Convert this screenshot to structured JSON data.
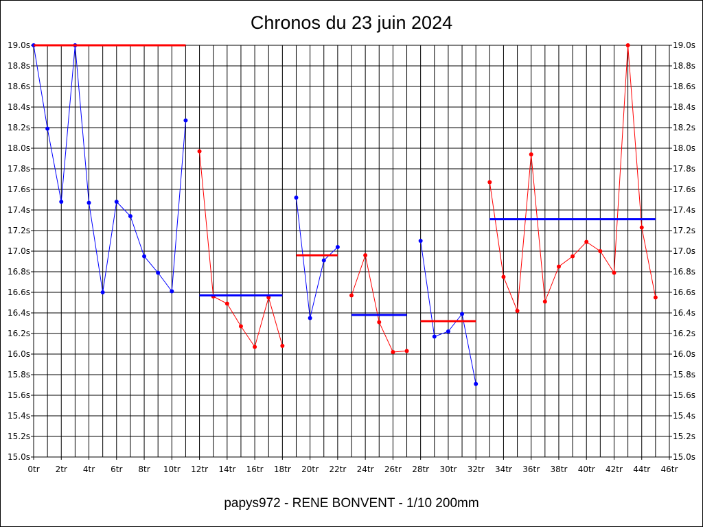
{
  "chart_data": {
    "type": "line",
    "title": "Chronos du 23 juin 2024",
    "subtitle": "papys972 - RENE BONVENT - 1/10 200mm",
    "xlabel": "",
    "ylabel": "",
    "xlim": [
      0,
      46
    ],
    "ylim": [
      15.0,
      19.0
    ],
    "grid": true,
    "x_ticks": [
      "0tr",
      "2tr",
      "4tr",
      "6tr",
      "8tr",
      "10tr",
      "12tr",
      "14tr",
      "16tr",
      "18tr",
      "20tr",
      "22tr",
      "24tr",
      "26tr",
      "28tr",
      "30tr",
      "32tr",
      "34tr",
      "36tr",
      "38tr",
      "40tr",
      "42tr",
      "44tr",
      "46tr"
    ],
    "y_ticks": [
      "19.0s",
      "18.8s",
      "18.6s",
      "18.4s",
      "18.2s",
      "18.0s",
      "17.8s",
      "17.6s",
      "17.4s",
      "17.2s",
      "17.0s",
      "16.8s",
      "16.6s",
      "16.4s",
      "16.2s",
      "16.0s",
      "15.8s",
      "15.6s",
      "15.4s",
      "15.2s",
      "15.0s"
    ],
    "colors": {
      "blue": "#0000ff",
      "red": "#ff0000"
    },
    "series": [
      {
        "color": "blue",
        "x": [
          0,
          1,
          2,
          3,
          4,
          5,
          6,
          7,
          8,
          9,
          10,
          11
        ],
        "y": [
          19.0,
          18.19,
          17.48,
          19.0,
          17.47,
          16.6,
          17.48,
          17.34,
          16.95,
          16.79,
          16.61,
          18.27
        ]
      },
      {
        "color": "red",
        "x": [
          12,
          13,
          14,
          15,
          16,
          17,
          18
        ],
        "y": [
          17.97,
          16.56,
          16.49,
          16.27,
          16.07,
          16.55,
          16.08
        ]
      },
      {
        "color": "blue",
        "x": [
          19,
          20,
          21,
          22
        ],
        "y": [
          17.52,
          16.35,
          16.91,
          17.04
        ]
      },
      {
        "color": "red",
        "x": [
          23,
          24,
          25,
          26,
          27
        ],
        "y": [
          16.57,
          16.96,
          16.31,
          16.02,
          16.03
        ]
      },
      {
        "color": "blue",
        "x": [
          28,
          29,
          30,
          31,
          32
        ],
        "y": [
          17.1,
          16.17,
          16.22,
          16.39,
          15.71
        ]
      },
      {
        "color": "red",
        "x": [
          33,
          34,
          35,
          36,
          37,
          38,
          39,
          40,
          41,
          42,
          43,
          44,
          45
        ],
        "y": [
          17.67,
          16.75,
          16.42,
          17.94,
          16.51,
          16.85,
          16.95,
          17.09,
          17.0,
          16.79,
          19.0,
          17.23,
          16.55
        ]
      }
    ],
    "averages": [
      {
        "color": "red",
        "x": [
          0,
          11
        ],
        "y": 19.0
      },
      {
        "color": "blue",
        "x": [
          12,
          18
        ],
        "y": 16.57
      },
      {
        "color": "red",
        "x": [
          19,
          22
        ],
        "y": 16.96
      },
      {
        "color": "blue",
        "x": [
          23,
          27
        ],
        "y": 16.38
      },
      {
        "color": "red",
        "x": [
          28,
          32
        ],
        "y": 16.32
      },
      {
        "color": "blue",
        "x": [
          33,
          45
        ],
        "y": 17.31
      }
    ]
  }
}
